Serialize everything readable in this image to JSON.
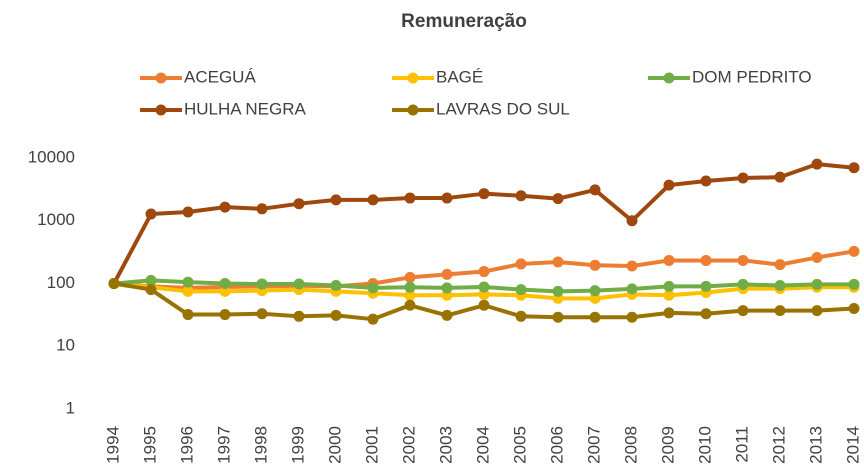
{
  "chart_data": {
    "type": "line",
    "title": "Remuneração",
    "categories": [
      "1994",
      "1995",
      "1996",
      "1997",
      "1998",
      "1999",
      "2000",
      "2001",
      "2002",
      "2003",
      "2004",
      "2005",
      "2006",
      "2007",
      "2008",
      "2009",
      "2010",
      "2011",
      "2012",
      "2013",
      "2014"
    ],
    "series": [
      {
        "name": "ACEGUÁ",
        "color": "#ED7D31",
        "values": [
          100,
          90,
          85,
          88,
          90,
          92,
          90,
          100,
          125,
          140,
          155,
          205,
          220,
          195,
          190,
          233,
          233,
          233,
          200,
          260,
          325
        ]
      },
      {
        "name": "BAGÉ",
        "color": "#FFC000",
        "values": [
          100,
          87,
          75,
          75,
          77,
          80,
          75,
          70,
          65,
          65,
          67,
          65,
          58,
          58,
          67,
          65,
          72,
          83,
          83,
          87,
          87
        ]
      },
      {
        "name": "DOM PEDRITO",
        "color": "#70AD47",
        "values": [
          100,
          112,
          105,
          100,
          98,
          98,
          93,
          85,
          87,
          85,
          88,
          80,
          75,
          77,
          82,
          90,
          90,
          97,
          93,
          97,
          97
        ]
      },
      {
        "name": "HULHA NEGRA",
        "color": "#9E480E",
        "values": [
          100,
          1280,
          1380,
          1650,
          1550,
          1870,
          2150,
          2150,
          2300,
          2300,
          2700,
          2500,
          2250,
          3100,
          1000,
          3700,
          4300,
          4800,
          4950,
          8000,
          7000
        ]
      },
      {
        "name": "LAVRAS DO SUL",
        "color": "#997300",
        "values": [
          100,
          80,
          32,
          32,
          33,
          30,
          31,
          27,
          45,
          31,
          45,
          30,
          29,
          29,
          29,
          34,
          33,
          37,
          37,
          37,
          40
        ]
      }
    ],
    "log_scale": true,
    "ylim": [
      1,
      10000
    ],
    "yticks": [
      1,
      10,
      100,
      1000,
      10000
    ],
    "grid": false,
    "legend": "top"
  }
}
